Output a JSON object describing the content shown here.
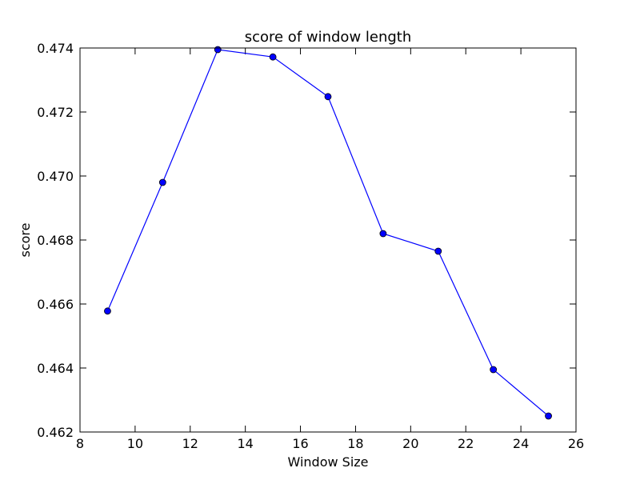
{
  "chart_data": {
    "type": "line",
    "title": "score of window length",
    "xlabel": "Window Size",
    "ylabel": "score",
    "xlim": [
      8,
      26
    ],
    "ylim": [
      0.462,
      0.474
    ],
    "xticks": [
      "8",
      "10",
      "12",
      "14",
      "16",
      "18",
      "20",
      "22",
      "24",
      "26"
    ],
    "yticks": [
      "0.462",
      "0.464",
      "0.466",
      "0.468",
      "0.470",
      "0.472",
      "0.474"
    ],
    "grid": false,
    "legend": "none",
    "series": [
      {
        "color": "#0000ff",
        "marker": "circle",
        "x": [
          9,
          11,
          13,
          15,
          17,
          19,
          21,
          23,
          25
        ],
        "y": [
          0.46578,
          0.4698,
          0.47395,
          0.47372,
          0.47248,
          0.4682,
          0.46765,
          0.46395,
          0.4625
        ]
      }
    ]
  }
}
